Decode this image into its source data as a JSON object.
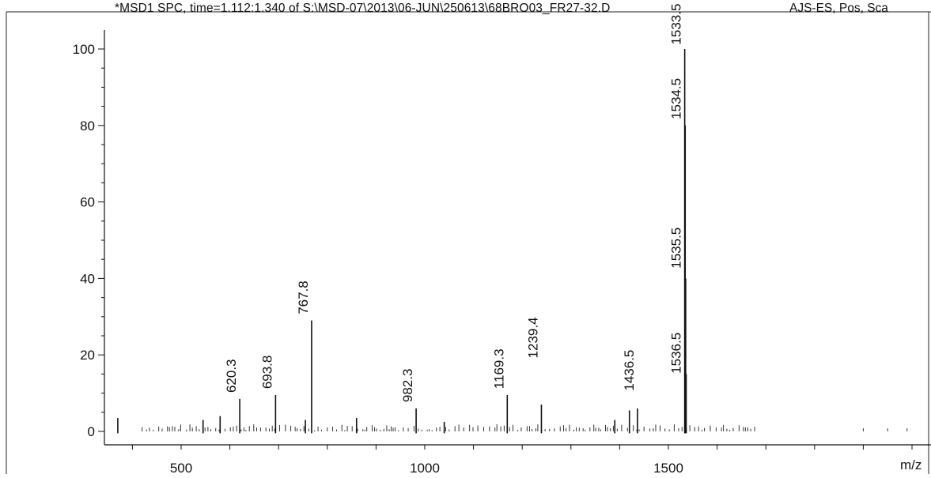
{
  "header": {
    "title": "*MSD1 SPC, time=1.112:1.340 of S:\\MSD-07\\2013\\06-JUN\\250613\\68BRO03_FR27-32.D",
    "mode": "AJS-ES, Pos, Sca"
  },
  "chart_data": {
    "type": "bar",
    "title": "*MSD1 SPC, time=1.112:1.340 of S:\\MSD-07\\2013\\06-JUN\\250613\\68BRO03_FR27-32.D",
    "xlabel": "m/z",
    "ylabel": "",
    "xlim": [
      355,
      1440
    ],
    "ylim": [
      -3,
      105
    ],
    "xticks": [
      500,
      1000,
      1500
    ],
    "yticks": [
      0,
      20,
      40,
      60,
      80,
      100
    ],
    "grid": false,
    "series": [
      {
        "peaks": [
          {
            "x": 620.3,
            "y": 8.5
          },
          {
            "x": 693.8,
            "y": 9.5
          },
          {
            "x": 767.8,
            "y": 29
          },
          {
            "x": 982.3,
            "y": 6
          },
          {
            "x": 1169.3,
            "y": 9.5
          },
          {
            "x": 1239.4,
            "y": 7
          },
          {
            "x": 1436.5,
            "y": 6
          },
          {
            "x": 1533.5,
            "y": 100
          },
          {
            "x": 1534.5,
            "y": 80
          },
          {
            "x": 1535.5,
            "y": 40
          },
          {
            "x": 1536.5,
            "y": 15
          },
          {
            "x": 370,
            "y": 3.5
          },
          {
            "x": 545,
            "y": 3
          },
          {
            "x": 580,
            "y": 4
          },
          {
            "x": 755,
            "y": 3
          },
          {
            "x": 860,
            "y": 3.5
          },
          {
            "x": 1040,
            "y": 2.5
          },
          {
            "x": 1420,
            "y": 5.5
          },
          {
            "x": 1390,
            "y": 3
          }
        ]
      }
    ],
    "peak_labels": [
      "620.3",
      "693.8",
      "767.8",
      "982.3",
      "1169.3",
      "1239.4",
      "1436.5",
      "1536.5",
      "1535.5",
      "1534.5",
      "1533.5"
    ]
  }
}
